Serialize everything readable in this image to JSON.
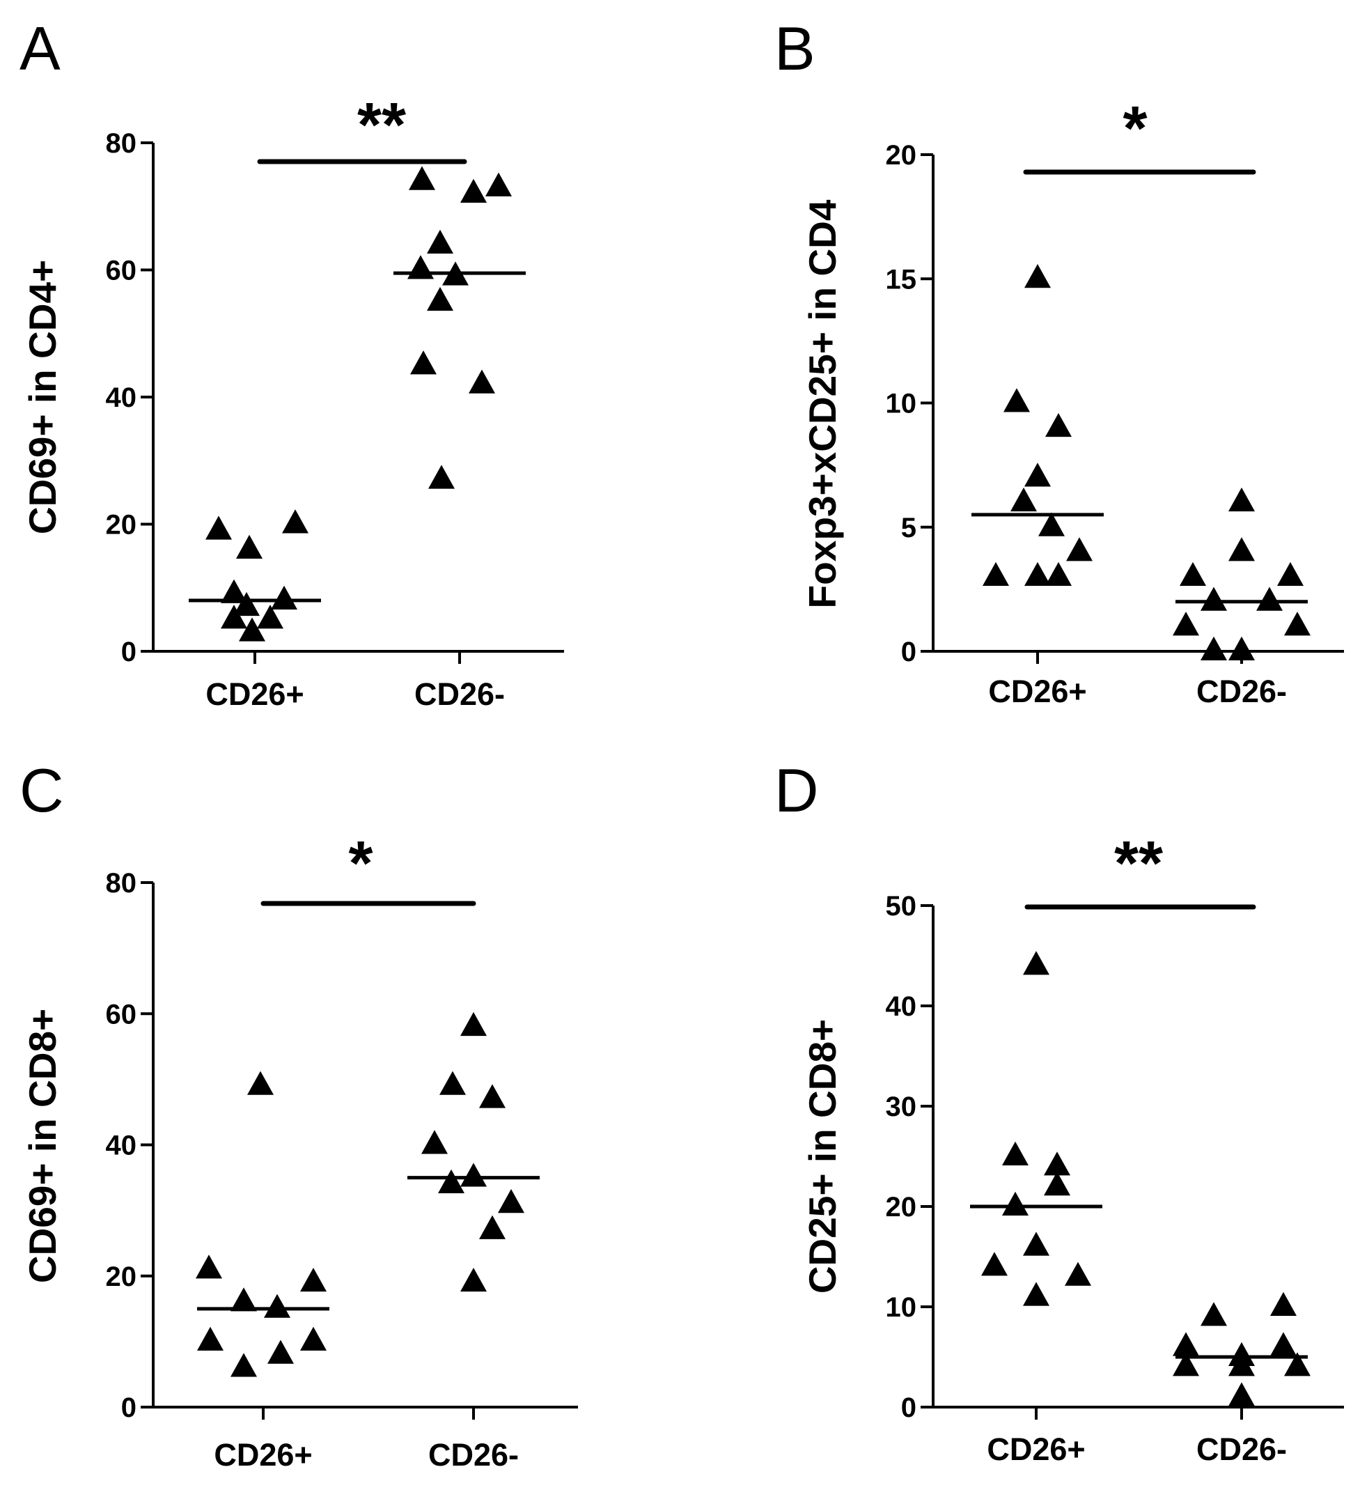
{
  "chart_data": [
    {
      "panel": "A",
      "type": "scatter",
      "categories": [
        "CD26+",
        "CD26-"
      ],
      "ylabel": "CD69+ in CD4+",
      "ylim": [
        0,
        80
      ],
      "yticks": [
        "0",
        "20",
        "40",
        "60",
        "80"
      ],
      "significance": "**",
      "series": [
        {
          "name": "CD26+",
          "values": [
            19,
            9,
            7,
            3,
            5,
            5,
            8,
            16,
            20
          ],
          "median": 8
        },
        {
          "name": "CD26-",
          "values": [
            74,
            72,
            73,
            64,
            60,
            59,
            55,
            45,
            42,
            27
          ],
          "median": 59.5
        }
      ]
    },
    {
      "panel": "B",
      "type": "scatter",
      "categories": [
        "CD26+",
        "CD26-"
      ],
      "ylabel": "Foxp3+xCD25+ in CD4",
      "ylim": [
        0,
        20
      ],
      "yticks": [
        "0",
        "5",
        "10",
        "15",
        "20"
      ],
      "significance": "*",
      "series": [
        {
          "name": "CD26+",
          "values": [
            15,
            10,
            9,
            7,
            6,
            5,
            4,
            3,
            3,
            3
          ],
          "median": 5.5
        },
        {
          "name": "CD26-",
          "values": [
            6,
            4,
            3,
            3,
            2,
            2,
            1,
            1,
            0,
            0
          ],
          "median": 2
        }
      ]
    },
    {
      "panel": "C",
      "type": "scatter",
      "categories": [
        "CD26+",
        "CD26-"
      ],
      "ylabel": "CD69+ in CD8+",
      "ylim": [
        0,
        80
      ],
      "yticks": [
        "0",
        "20",
        "40",
        "60",
        "80"
      ],
      "significance": "*",
      "series": [
        {
          "name": "CD26+",
          "values": [
            49,
            21,
            16,
            15,
            19,
            10,
            6,
            8,
            10
          ],
          "median": 15
        },
        {
          "name": "CD26-",
          "values": [
            58,
            49,
            47,
            40,
            35,
            34,
            31,
            27,
            19
          ],
          "median": 35
        }
      ]
    },
    {
      "panel": "D",
      "type": "scatter",
      "categories": [
        "CD26+",
        "CD26-"
      ],
      "ylabel": "CD25+ in CD8+",
      "ylim": [
        0,
        50
      ],
      "yticks": [
        "0",
        "10",
        "20",
        "30",
        "40",
        "50"
      ],
      "significance": "**",
      "series": [
        {
          "name": "CD26+",
          "values": [
            44,
            25,
            24,
            22,
            20,
            16,
            14,
            13,
            11
          ],
          "median": 20
        },
        {
          "name": "CD26-",
          "values": [
            10,
            9,
            6,
            5,
            6,
            4,
            4,
            4,
            1
          ],
          "median": 5
        }
      ]
    }
  ]
}
